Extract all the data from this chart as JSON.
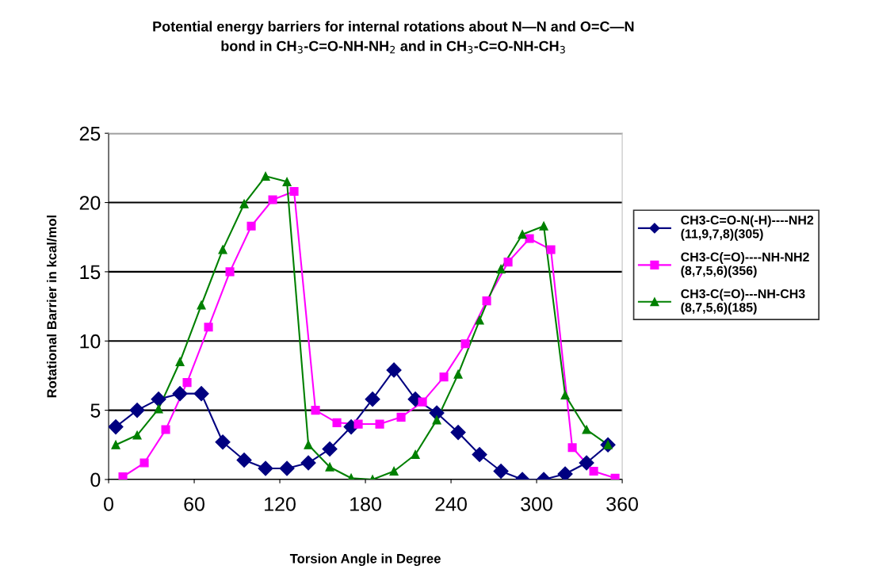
{
  "chart_data": {
    "type": "line",
    "title": "Potential energy barriers for internal rotations about N—N and O=C—N\nbond in CH$_{3}$-C=O-NH-NH$_{2}$ and in CH$_{3}$-C=O-NH-CH$_{3}$",
    "xlabel": "Torsion Angle in Degree",
    "ylabel": "Rotational Barrier in kcal/mol",
    "xlim": [
      0,
      360
    ],
    "xticks": [
      0,
      60,
      120,
      180,
      240,
      300,
      360
    ],
    "ylim": [
      0,
      25
    ],
    "yticks": [
      0,
      5,
      10,
      15,
      20,
      25
    ],
    "grid": "y",
    "legend": "right",
    "series": [
      {
        "name": "CH3-C=O-N(-H)----NH2\n(11,9,7,8)(305)",
        "color": "#000080",
        "marker": "diamond",
        "x": [
          5,
          20,
          35,
          50,
          65,
          80,
          95,
          110,
          125,
          140,
          155,
          170,
          185,
          200,
          215,
          230,
          245,
          260,
          275,
          290,
          305,
          320,
          335,
          350
        ],
        "values": [
          3.8,
          5.0,
          5.8,
          6.2,
          6.2,
          2.7,
          1.4,
          0.8,
          0.8,
          1.2,
          2.2,
          3.8,
          5.8,
          7.9,
          5.8,
          4.8,
          3.4,
          1.8,
          0.6,
          0,
          0,
          0.4,
          1.2,
          2.5
        ]
      },
      {
        "name": "CH3-C(=O)----NH-NH2\n(8,7,5,6)(356)",
        "color": "#ff00ff",
        "marker": "square",
        "x": [
          10,
          25,
          40,
          55,
          70,
          85,
          100,
          115,
          130,
          145,
          160,
          175,
          190,
          205,
          220,
          235,
          250,
          265,
          280,
          295,
          310,
          325,
          340,
          355
        ],
        "values": [
          0.2,
          1.2,
          3.6,
          7.0,
          11.0,
          15.0,
          18.3,
          20.2,
          20.8,
          5.0,
          4.1,
          4.0,
          4.0,
          4.5,
          5.6,
          7.4,
          9.8,
          12.9,
          15.7,
          17.4,
          16.6,
          2.3,
          0.6,
          0.1
        ]
      },
      {
        "name": "CH3-C(=O)---NH-CH3\n(8,7,5,6)(185)",
        "color": "#008000",
        "marker": "triangle",
        "x": [
          5,
          20,
          35,
          50,
          65,
          80,
          95,
          110,
          125,
          140,
          155,
          170,
          185,
          200,
          215,
          230,
          245,
          260,
          275,
          290,
          305,
          320,
          335,
          350
        ],
        "values": [
          2.5,
          3.2,
          5.1,
          8.5,
          12.6,
          16.6,
          19.9,
          21.9,
          21.5,
          2.5,
          0.9,
          0.1,
          0.0,
          0.6,
          1.8,
          4.3,
          7.6,
          11.5,
          15.2,
          17.7,
          18.3,
          6.1,
          3.6,
          2.5
        ]
      }
    ]
  }
}
